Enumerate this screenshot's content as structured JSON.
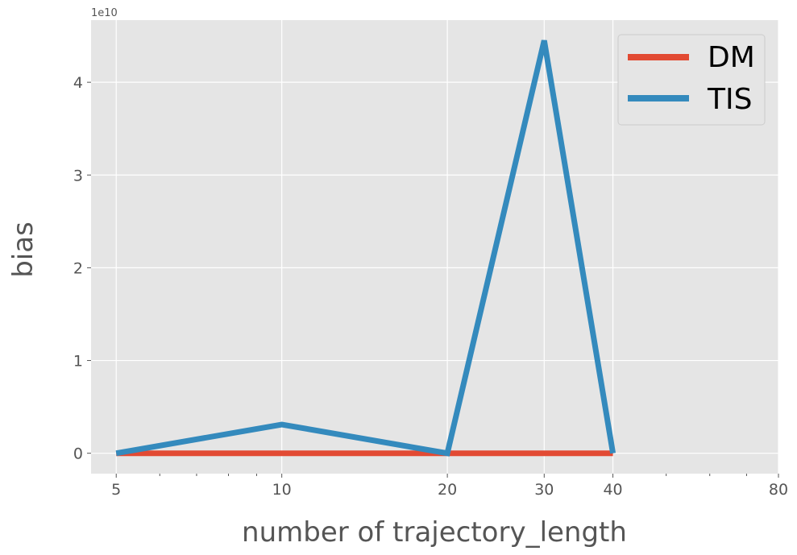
{
  "chart_data": {
    "type": "line",
    "xlabel": "number of trajectory_length",
    "ylabel": "bias",
    "x_scale": "log",
    "x_ticks": [
      5,
      10,
      20,
      30,
      40,
      80
    ],
    "x_tick_labels": [
      "5",
      "10",
      "20",
      "30",
      "40",
      "80"
    ],
    "xlim": [
      4.5,
      80
    ],
    "y_ticks": [
      0,
      1,
      2,
      3,
      4
    ],
    "y_tick_labels": [
      "0",
      "1",
      "2",
      "3",
      "4"
    ],
    "y_offset_label": "1e10",
    "ylim": [
      -0.22,
      4.67
    ],
    "grid": true,
    "legend_position": "top-right",
    "series": [
      {
        "name": "DM",
        "color": "#E24A33",
        "x": [
          5,
          10,
          20,
          30,
          40
        ],
        "y": [
          0,
          0,
          0,
          0,
          0
        ]
      },
      {
        "name": "TIS",
        "color": "#348ABD",
        "x": [
          5,
          10,
          20,
          30,
          40
        ],
        "y": [
          0,
          0.31,
          0,
          4.45,
          0
        ]
      }
    ]
  }
}
